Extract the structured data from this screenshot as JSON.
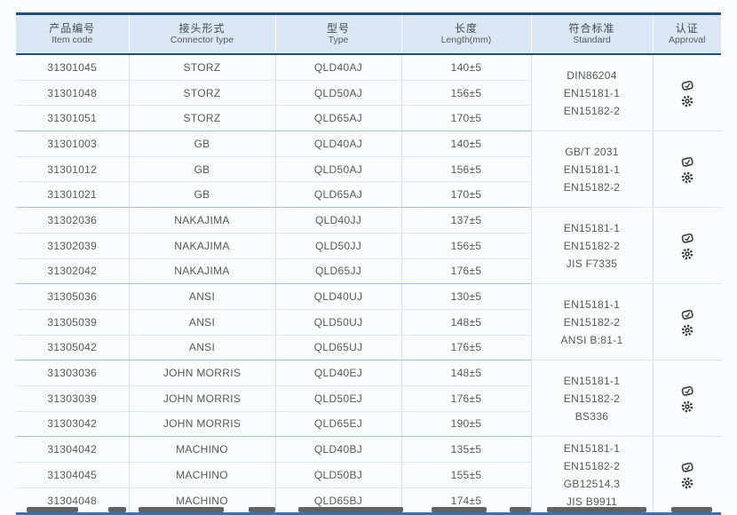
{
  "table": {
    "headers": [
      {
        "zh": "产品编号",
        "en": "Item code"
      },
      {
        "zh": "接头形式",
        "en": "Connector type"
      },
      {
        "zh": "型号",
        "en": "Type"
      },
      {
        "zh": "长度",
        "en": "Length(mm)"
      },
      {
        "zh": "符合标准",
        "en": "Standard"
      },
      {
        "zh": "认证",
        "en": "Approval"
      }
    ],
    "groups": [
      {
        "rows": [
          {
            "item_code": "31301045",
            "connector_type": "STORZ",
            "type": "QLD40AJ",
            "length": "140±5"
          },
          {
            "item_code": "31301048",
            "connector_type": "STORZ",
            "type": "QLD50AJ",
            "length": "156±5"
          },
          {
            "item_code": "31301051",
            "connector_type": "STORZ",
            "type": "QLD65AJ",
            "length": "170±5"
          }
        ],
        "standards": [
          "DIN86204",
          "EN15181-1",
          "EN15182-2"
        ],
        "approval_icons": [
          "certificate-stamp-icon",
          "gear-seal-icon"
        ]
      },
      {
        "rows": [
          {
            "item_code": "31301003",
            "connector_type": "GB",
            "type": "QLD40AJ",
            "length": "140±5"
          },
          {
            "item_code": "31301012",
            "connector_type": "GB",
            "type": "QLD50AJ",
            "length": "156±5"
          },
          {
            "item_code": "31301021",
            "connector_type": "GB",
            "type": "QLD65AJ",
            "length": "170±5"
          }
        ],
        "standards": [
          "GB/T 2031",
          "EN15181-1",
          "EN15182-2"
        ],
        "approval_icons": [
          "certificate-stamp-icon",
          "gear-seal-icon"
        ]
      },
      {
        "rows": [
          {
            "item_code": "31302036",
            "connector_type": "NAKAJIMA",
            "type": "QLD40JJ",
            "length": "137±5"
          },
          {
            "item_code": "31302039",
            "connector_type": "NAKAJIMA",
            "type": "QLD50JJ",
            "length": "156±5"
          },
          {
            "item_code": "31302042",
            "connector_type": "NAKAJIMA",
            "type": "QLD65JJ",
            "length": "176±5"
          }
        ],
        "standards": [
          "EN15181-1",
          "EN15182-2",
          "JIS F7335"
        ],
        "approval_icons": [
          "certificate-stamp-icon",
          "gear-seal-icon"
        ]
      },
      {
        "rows": [
          {
            "item_code": "31305036",
            "connector_type": "ANSI",
            "type": "QLD40UJ",
            "length": "130±5"
          },
          {
            "item_code": "31305039",
            "connector_type": "ANSI",
            "type": "QLD50UJ",
            "length": "148±5"
          },
          {
            "item_code": "31305042",
            "connector_type": "ANSI",
            "type": "QLD65UJ",
            "length": "176±5"
          }
        ],
        "standards": [
          "EN15181-1",
          "EN15182-2",
          "ANSI B:81-1"
        ],
        "approval_icons": [
          "certificate-stamp-icon",
          "gear-seal-icon"
        ]
      },
      {
        "rows": [
          {
            "item_code": "31303036",
            "connector_type": "JOHN MORRIS",
            "type": "QLD40EJ",
            "length": "148±5"
          },
          {
            "item_code": "31303039",
            "connector_type": "JOHN MORRIS",
            "type": "QLD50EJ",
            "length": "176±5"
          },
          {
            "item_code": "31303042",
            "connector_type": "JOHN MORRIS",
            "type": "QLD65EJ",
            "length": "190±5"
          }
        ],
        "standards": [
          "EN15181-1",
          "EN15182-2",
          "BS336"
        ],
        "approval_icons": [
          "certificate-stamp-icon",
          "gear-seal-icon"
        ]
      },
      {
        "rows": [
          {
            "item_code": "31304042",
            "connector_type": "MACHINO",
            "type": "QLD40BJ",
            "length": "135±5"
          },
          {
            "item_code": "31304045",
            "connector_type": "MACHINO",
            "type": "QLD50BJ",
            "length": "155±5"
          },
          {
            "item_code": "31304048",
            "connector_type": "MACHINO",
            "type": "QLD65BJ",
            "length": "174±5"
          }
        ],
        "standards": [
          "EN15181-1",
          "EN15182-2",
          "GB12514.3",
          "JIS B9911"
        ],
        "approval_icons": [
          "certificate-stamp-icon",
          "gear-seal-icon"
        ]
      }
    ]
  },
  "colors": {
    "accent_navy": "#1f4e79",
    "bottom_border_blue": "#2e75b6",
    "header_bg": "#d9e6f4",
    "row_line": "#d7e8f8",
    "group_line": "#9dc3e6",
    "text": "#575757",
    "icon": "#3d3d3d"
  }
}
